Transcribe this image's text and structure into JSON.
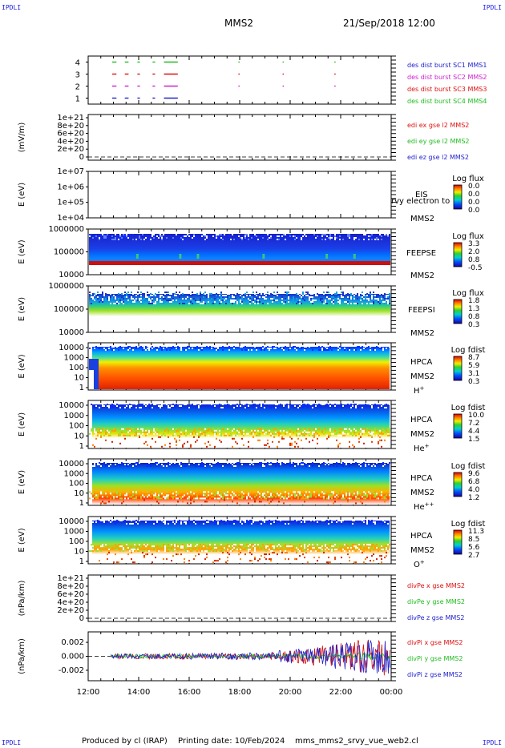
{
  "corner_labels": {
    "top_left": "IPDLI",
    "top_right": "IPDLI",
    "bottom_left": "IPDLI",
    "bottom_right": "IPDLI"
  },
  "header": {
    "spacecraft": "MMS2",
    "datetime": "21/Sep/2018 12:00"
  },
  "footer": {
    "produced_by": "Produced by cl (IRAP)",
    "printing_date": "Printing date: 10/Feb/2024",
    "script_name": "mms_mms2_srvy_vue_web2.cl"
  },
  "colors": {
    "blue": "#2222cc",
    "magenta": "#cc22cc",
    "red": "#dd1111",
    "green": "#22bb22",
    "spectrogram_low": "#0000aa",
    "spectrogram_high": "#dd0000"
  },
  "chart_data": [
    {
      "type": "scatter",
      "panel": "burst-availability",
      "yticks": [
        "1",
        "2",
        "3",
        "4"
      ],
      "ylim": [
        0.5,
        4.5
      ],
      "legend": [
        {
          "text": "des dist burst SC1 MMS1",
          "color": "#2222cc"
        },
        {
          "text": "des dist burst SC2 MMS2",
          "color": "#cc22cc"
        },
        {
          "text": "des dist burst SC3 MMS3",
          "color": "#dd1111"
        },
        {
          "text": "des dist burst SC4 MMS4",
          "color": "#22bb22"
        }
      ],
      "series": [
        {
          "sc": 4,
          "color": "#22bb22",
          "segments": [
            [
              12.95,
              13.12
            ],
            [
              13.45,
              13.6
            ],
            [
              13.95,
              14.05
            ],
            [
              14.55,
              14.65
            ],
            [
              15.0,
              15.55
            ],
            [
              17.95,
              18.0
            ],
            [
              19.7,
              19.75
            ],
            [
              21.75,
              21.8
            ]
          ]
        },
        {
          "sc": 3,
          "color": "#dd1111",
          "segments": [
            [
              12.95,
              13.12
            ],
            [
              13.45,
              13.6
            ],
            [
              13.95,
              14.05
            ],
            [
              14.55,
              14.65
            ],
            [
              15.0,
              15.55
            ],
            [
              17.95,
              18.0
            ],
            [
              19.7,
              19.75
            ],
            [
              21.75,
              21.8
            ]
          ]
        },
        {
          "sc": 2,
          "color": "#cc22cc",
          "segments": [
            [
              12.95,
              13.12
            ],
            [
              13.45,
              13.6
            ],
            [
              13.95,
              14.05
            ],
            [
              14.55,
              14.65
            ],
            [
              15.0,
              15.55
            ],
            [
              17.95,
              18.0
            ],
            [
              19.7,
              19.75
            ],
            [
              21.75,
              21.8
            ]
          ]
        },
        {
          "sc": 1,
          "color": "#2222cc",
          "segments": [
            [
              12.95,
              13.12
            ],
            [
              13.45,
              13.6
            ],
            [
              13.95,
              14.05
            ],
            [
              14.55,
              14.65
            ],
            [
              15.0,
              15.55
            ]
          ]
        }
      ]
    },
    {
      "type": "line",
      "panel": "edi-electric-field",
      "ylabel": "(mV/m)",
      "yticks": [
        "0",
        "2e+20",
        "4e+20",
        "6e+20",
        "8e+20",
        "1e+21"
      ],
      "ylim": [
        0,
        1.1e+21
      ],
      "zero_line": true,
      "legend": [
        {
          "text": "edi ex gse l2 MMS2",
          "color": "#dd1111"
        },
        {
          "text": "edi ey gse l2 MMS2",
          "color": "#22bb22"
        },
        {
          "text": "edi ez gse l2 MMS2",
          "color": "#2222cc"
        }
      ]
    },
    {
      "type": "heatmap",
      "panel": "eis",
      "ylabel": "E (eV)",
      "yticks": [
        "1e+04",
        "1e+05",
        "1e+06",
        "1e+07"
      ],
      "instrument": [
        "EIS",
        "MMS2"
      ],
      "overlay_text": "rvy electron to",
      "colorbar": {
        "title": "Log flux",
        "ticks": [
          "0.0",
          "0.0",
          "0.0",
          "0.0"
        ]
      },
      "empty": true
    },
    {
      "type": "heatmap",
      "panel": "feeps-electrons",
      "ylabel": "E (eV)",
      "yticks": [
        "10000",
        "100000",
        "1000000"
      ],
      "instrument": [
        "FEEPSE",
        "MMS2"
      ],
      "colorbar": {
        "title": "Log flux",
        "ticks": [
          "3.3",
          "2.0",
          "0.8",
          "-0.5"
        ]
      }
    },
    {
      "type": "heatmap",
      "panel": "feeps-ions",
      "ylabel": "E (eV)",
      "yticks": [
        "10000",
        "100000",
        "1000000"
      ],
      "instrument": [
        "FEEPSI",
        "MMS2"
      ],
      "colorbar": {
        "title": "Log flux",
        "ticks": [
          "1.8",
          "1.3",
          "0.8",
          "0.3"
        ]
      }
    },
    {
      "type": "heatmap",
      "panel": "hpca-h",
      "ylabel": "E (eV)",
      "yticks": [
        "1",
        "10",
        "100",
        "1000",
        "10000"
      ],
      "instrument": [
        "HPCA",
        "MMS2"
      ],
      "species": "H",
      "species_sup": "+",
      "colorbar": {
        "title": "Log fdist",
        "ticks": [
          "8.7",
          "5.9",
          "3.1",
          "0.3"
        ]
      }
    },
    {
      "type": "heatmap",
      "panel": "hpca-he",
      "ylabel": "E (eV)",
      "yticks": [
        "1",
        "10",
        "100",
        "1000",
        "10000"
      ],
      "instrument": [
        "HPCA",
        "MMS2"
      ],
      "species": "He",
      "species_sup": "+",
      "colorbar": {
        "title": "Log fdist",
        "ticks": [
          "10.0",
          "7.2",
          "4.4",
          "1.5"
        ]
      }
    },
    {
      "type": "heatmap",
      "panel": "hpca-hepp",
      "ylabel": "E (eV)",
      "yticks": [
        "1",
        "10",
        "100",
        "1000",
        "10000"
      ],
      "instrument": [
        "HPCA",
        "MMS2"
      ],
      "species": "He",
      "species_sup": "++",
      "colorbar": {
        "title": "Log fdist",
        "ticks": [
          "9.6",
          "6.8",
          "4.0",
          "1.2"
        ]
      }
    },
    {
      "type": "heatmap",
      "panel": "hpca-o",
      "ylabel": "E (eV)",
      "yticks": [
        "1",
        "10",
        "100",
        "1000",
        "10000"
      ],
      "instrument": [
        "HPCA",
        "MMS2"
      ],
      "species": "O",
      "species_sup": "+",
      "colorbar": {
        "title": "Log fdist",
        "ticks": [
          "11.3",
          "8.5",
          "5.6",
          "2.7"
        ]
      }
    },
    {
      "type": "line",
      "panel": "div-pe",
      "ylabel": "(nPa/km)",
      "yticks": [
        "0",
        "2e+20",
        "4e+20",
        "6e+20",
        "8e+20",
        "1e+21"
      ],
      "ylim": [
        0,
        1.1e+21
      ],
      "zero_line": true,
      "legend": [
        {
          "text": "divPe x gse MMS2",
          "color": "#dd1111"
        },
        {
          "text": "divPe y gse MMS2",
          "color": "#22bb22"
        },
        {
          "text": "divPe z gse MMS2",
          "color": "#2222cc"
        }
      ]
    },
    {
      "type": "line",
      "panel": "div-pi",
      "ylabel": "(nPa/km)",
      "yticks": [
        "-0.002",
        "0.000",
        "0.002"
      ],
      "ylim": [
        -0.0035,
        0.0035
      ],
      "legend": [
        {
          "text": "divPi x gse MMS2",
          "color": "#dd1111"
        },
        {
          "text": "divPi y gse MMS2",
          "color": "#22bb22"
        },
        {
          "text": "divPi z gse MMS2",
          "color": "#2222cc"
        }
      ]
    }
  ],
  "x_axis": {
    "ticks": [
      "12:00",
      "14:00",
      "16:00",
      "18:00",
      "20:00",
      "22:00",
      "00:00"
    ],
    "range_hours": [
      12,
      24
    ]
  }
}
